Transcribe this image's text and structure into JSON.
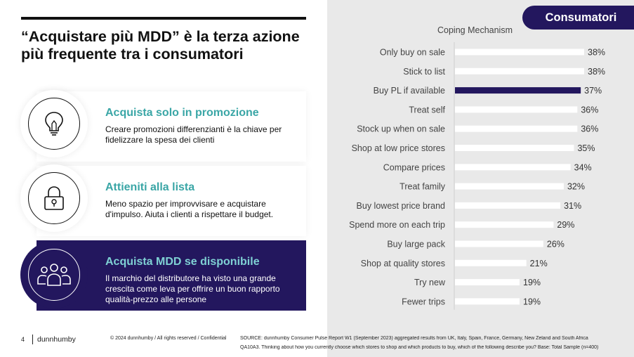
{
  "headline": "“Acquistare più MDD” è la terza azione più frequente tra i consumatori",
  "cards": [
    {
      "title": "Acquista solo in promozione",
      "text": "Creare promozioni differenzianti è la chiave per fidelizzare la spesa dei clienti",
      "icon": "lightbulb-icon"
    },
    {
      "title": "Attieniti alla lista",
      "text": "Meno spazio per improvvisare e acquistare d'impulso. Aiuta i clienti a rispettare il budget.",
      "icon": "lock-icon"
    },
    {
      "title": "Acquista MDD se disponibile",
      "text": "Il marchio del distributore ha visto una grande crescita come leva per offrire un buon rapporto qualità-prezzo alle persone",
      "icon": "people-group-icon"
    }
  ],
  "tag": "Consumatori",
  "footer": {
    "page": "4",
    "brand": "dunnhumby",
    "copyright": "© 2024 dunnhumby / All rights reserved / Confidential",
    "source_line1": "SOURCE: dunnhumby Consumer Pulse Report W1 (September 2023) aggregated results from UK, Italy, Spain, France, Germany, New Zeland and South Africa",
    "source_line2": "QA10A3. Thinking about how you currently choose which stores to shop and which products to buy, which of the following describe you? Base: Total Sample (n=400)"
  },
  "colors": {
    "navy": "#23175e",
    "teal": "#3aa6a6",
    "bar": "#ffffff",
    "highlight": "#23175e"
  },
  "chart_data": {
    "type": "bar",
    "orientation": "horizontal",
    "title": "Coping Mechanism",
    "categories": [
      "Only buy on sale",
      "Stick to list",
      "Buy PL if available",
      "Treat self",
      "Stock up when on sale",
      "Shop at low price stores",
      "Compare prices",
      "Treat family",
      "Buy lowest price brand",
      "Spend more on each trip",
      "Buy large pack",
      "Shop at quality stores",
      "Try new",
      "Fewer trips"
    ],
    "values": [
      38,
      38,
      37,
      36,
      36,
      35,
      34,
      32,
      31,
      29,
      26,
      21,
      19,
      19
    ],
    "value_suffix": "%",
    "highlight_category": "Buy PL if available",
    "xlim": [
      0,
      38
    ]
  }
}
